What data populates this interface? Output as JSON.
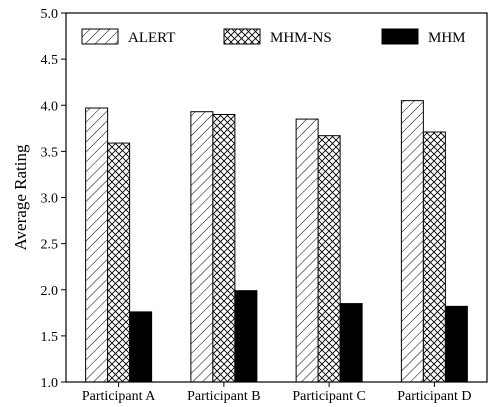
{
  "chart_data": {
    "type": "bar",
    "title": "",
    "xlabel": "",
    "ylabel": "Average Rating",
    "ylim": [
      1.0,
      5.0
    ],
    "yticks": [
      "1.0",
      "1.5",
      "2.0",
      "2.5",
      "3.0",
      "3.5",
      "4.0",
      "4.5",
      "5.0"
    ],
    "grid": false,
    "legend_position": "top",
    "categories": [
      "Participant A",
      "Participant B",
      "Participant C",
      "Participant D"
    ],
    "series": [
      {
        "name": "ALERT",
        "pattern": "diagonal-hatch",
        "color": "#000000",
        "values": [
          3.97,
          3.93,
          3.85,
          4.05
        ]
      },
      {
        "name": "MHM-NS",
        "pattern": "cross-hatch",
        "color": "#000000",
        "values": [
          3.59,
          3.9,
          3.67,
          3.71
        ]
      },
      {
        "name": "MHM",
        "pattern": "solid",
        "color": "#000000",
        "values": [
          1.76,
          1.99,
          1.85,
          1.82
        ]
      }
    ]
  }
}
